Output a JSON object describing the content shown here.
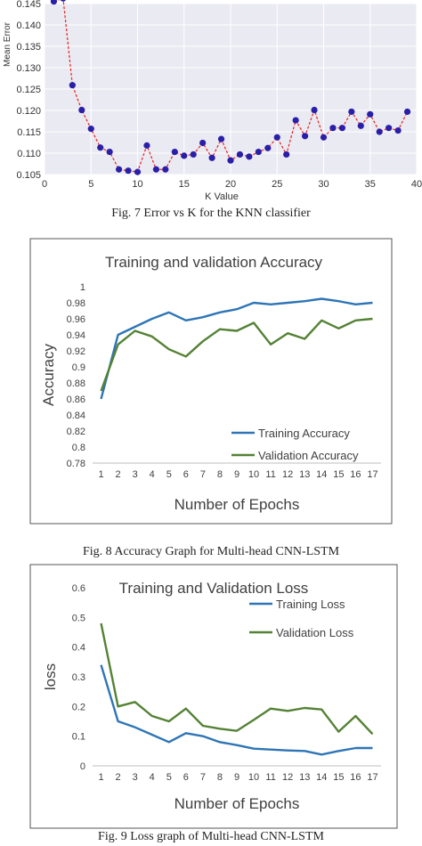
{
  "chart_data": [
    {
      "type": "scatter",
      "caption": "Fig. 7 Error vs K for the KNN classifier",
      "xlabel": "K Value",
      "ylabel": "Mean Error",
      "xlim": [
        0,
        40
      ],
      "ylim": [
        0.105,
        0.145
      ],
      "xticks": [
        "0",
        "5",
        "10",
        "15",
        "20",
        "25",
        "30",
        "35",
        "40"
      ],
      "yticks": [
        "0.105",
        "0.110",
        "0.115",
        "0.120",
        "0.125",
        "0.130",
        "0.135",
        "0.140",
        "0.145"
      ],
      "grid": true,
      "marker_color": "#2a1fa8",
      "line_color": "#e8231f",
      "x": [
        1,
        2,
        3,
        4,
        5,
        6,
        7,
        8,
        9,
        10,
        11,
        12,
        13,
        14,
        15,
        16,
        17,
        18,
        19,
        20,
        21,
        22,
        23,
        24,
        25,
        26,
        27,
        28,
        29,
        30,
        31,
        32,
        33,
        34,
        35,
        36,
        37,
        38,
        39
      ],
      "y": [
        0.1455,
        0.1462,
        0.1259,
        0.1201,
        0.1157,
        0.1113,
        0.1103,
        0.1062,
        0.1059,
        0.1056,
        0.1118,
        0.1062,
        0.1062,
        0.1103,
        0.1094,
        0.1097,
        0.1124,
        0.1089,
        0.1133,
        0.1083,
        0.1097,
        0.1092,
        0.1103,
        0.1112,
        0.1137,
        0.1097,
        0.1177,
        0.114,
        0.1201,
        0.1137,
        0.1159,
        0.1159,
        0.1197,
        0.1164,
        0.1191,
        0.115,
        0.1159,
        0.1153,
        0.1197
      ]
    },
    {
      "type": "line",
      "caption": "Fig. 8 Accuracy Graph for Multi-head CNN-LSTM",
      "title": "Training and validation Accuracy",
      "xlabel": "Number of Epochs",
      "ylabel": "Accuracy",
      "ylim": [
        0.78,
        1.0
      ],
      "yticks": [
        "0.78",
        "0.8",
        "0.82",
        "0.84",
        "0.86",
        "0.88",
        "0.9",
        "0.92",
        "0.94",
        "0.96",
        "0.98",
        "1"
      ],
      "categories": [
        "1",
        "2",
        "3",
        "4",
        "5",
        "6",
        "7",
        "8",
        "9",
        "10",
        "11",
        "12",
        "13",
        "14",
        "15",
        "16",
        "17"
      ],
      "legend": "bottom-right",
      "series": [
        {
          "name": "Training Accuracy",
          "color": "#2e75b6",
          "values": [
            0.86,
            0.94,
            0.95,
            0.96,
            0.968,
            0.958,
            0.962,
            0.968,
            0.972,
            0.98,
            0.978,
            0.98,
            0.982,
            0.985,
            0.982,
            0.978,
            0.98
          ]
        },
        {
          "name": "Validation Accuracy",
          "color": "#548235",
          "values": [
            0.87,
            0.928,
            0.945,
            0.938,
            0.922,
            0.913,
            0.932,
            0.947,
            0.945,
            0.955,
            0.928,
            0.942,
            0.935,
            0.958,
            0.948,
            0.958,
            0.96
          ]
        }
      ]
    },
    {
      "type": "line",
      "caption": "Fig. 9 Loss graph of Multi-head CNN-LSTM",
      "title": "Training and Validation Loss",
      "xlabel": "Number of Epochs",
      "ylabel": "loss",
      "ylim": [
        0,
        0.6
      ],
      "yticks": [
        "0",
        "0.1",
        "0.2",
        "0.3",
        "0.4",
        "0.5",
        "0.6"
      ],
      "categories": [
        "1",
        "2",
        "3",
        "4",
        "5",
        "6",
        "7",
        "8",
        "9",
        "10",
        "11",
        "12",
        "13",
        "14",
        "15",
        "16",
        "17"
      ],
      "legend": "top-right",
      "series": [
        {
          "name": "Training Loss",
          "color": "#2e75b6",
          "values": [
            0.34,
            0.15,
            0.13,
            0.105,
            0.08,
            0.11,
            0.1,
            0.08,
            0.07,
            0.058,
            0.055,
            0.052,
            0.05,
            0.038,
            0.05,
            0.06,
            0.06
          ]
        },
        {
          "name": "Validation Loss",
          "color": "#548235",
          "values": [
            0.48,
            0.2,
            0.215,
            0.168,
            0.15,
            0.193,
            0.135,
            0.125,
            0.118,
            0.155,
            0.193,
            0.185,
            0.195,
            0.19,
            0.115,
            0.168,
            0.107
          ]
        }
      ]
    }
  ]
}
